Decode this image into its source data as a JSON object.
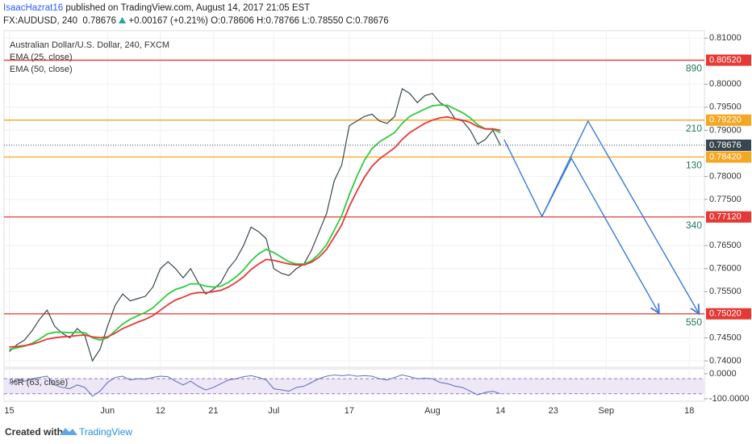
{
  "header": {
    "author": "IsaacHazrat16",
    "published": "published on TradingView.com, August 14, 2017 21:05 EST",
    "symbol": "FX:AUDUSD, 240",
    "price": "0.78676",
    "change": "+0.00167 (+0.21%)",
    "ohlc": "O:0.78606 H:0.78766 L:0.78550 C:0.78676"
  },
  "chart_data": [
    {
      "type": "line",
      "title": "Australian Dollar/U.S. Dollar, 240, FXCM",
      "x": [
        0,
        1,
        2,
        3,
        4,
        5,
        6,
        7,
        8,
        9,
        10,
        11,
        12,
        13,
        14,
        15,
        16,
        17,
        18,
        19,
        20,
        21,
        22,
        23,
        24,
        25,
        26,
        27,
        28,
        29,
        30,
        31,
        32,
        33,
        34,
        35,
        36,
        37,
        38,
        39,
        40,
        41,
        42,
        43,
        44,
        45,
        46,
        47,
        48,
        49,
        50,
        51,
        52,
        53,
        54,
        55,
        56,
        57,
        58,
        59,
        60,
        61,
        62,
        63,
        64,
        65
      ],
      "series": [
        {
          "color": "#37474f",
          "values": [
            0.742,
            0.7435,
            0.7445,
            0.7465,
            0.749,
            0.751,
            0.7475,
            0.746,
            0.745,
            0.747,
            0.7455,
            0.74,
            0.7425,
            0.7475,
            0.752,
            0.7545,
            0.753,
            0.7535,
            0.754,
            0.756,
            0.76,
            0.7615,
            0.76,
            0.758,
            0.76,
            0.757,
            0.7545,
            0.7555,
            0.757,
            0.76,
            0.762,
            0.765,
            0.769,
            0.768,
            0.7665,
            0.76,
            0.759,
            0.7585,
            0.76,
            0.761,
            0.764,
            0.768,
            0.772,
            0.779,
            0.7825,
            0.791,
            0.792,
            0.793,
            0.7935,
            0.792,
            0.7915,
            0.793,
            0.799,
            0.798,
            0.796,
            0.7975,
            0.798,
            0.796,
            0.795,
            0.7925,
            0.792,
            0.79,
            0.787,
            0.788,
            0.79,
            0.78676
          ]
        },
        {
          "name": "EMA (25, close)",
          "color": "#2ecc40",
          "values": [
            0.7425,
            0.7428,
            0.7432,
            0.7438,
            0.7447,
            0.7458,
            0.7462,
            0.7462,
            0.7461,
            0.7462,
            0.7461,
            0.745,
            0.7445,
            0.745,
            0.7465,
            0.748,
            0.749,
            0.7498,
            0.7505,
            0.7515,
            0.753,
            0.7545,
            0.7555,
            0.756,
            0.7567,
            0.7567,
            0.7562,
            0.756,
            0.7562,
            0.757,
            0.7582,
            0.7597,
            0.7617,
            0.7632,
            0.7642,
            0.7635,
            0.7625,
            0.7615,
            0.761,
            0.761,
            0.7617,
            0.7632,
            0.7652,
            0.7683,
            0.7715,
            0.776,
            0.78,
            0.7835,
            0.786,
            0.7875,
            0.7885,
            0.7895,
            0.7915,
            0.793,
            0.7938,
            0.7946,
            0.7953,
            0.7955,
            0.7954,
            0.7946,
            0.7938,
            0.7927,
            0.7912,
            0.7903,
            0.7902,
            0.7895
          ]
        },
        {
          "name": "EMA (50, close)",
          "color": "#e53935",
          "values": [
            0.743,
            0.7431,
            0.7433,
            0.7436,
            0.7441,
            0.7447,
            0.745,
            0.7452,
            0.7453,
            0.7455,
            0.7456,
            0.7452,
            0.745,
            0.7452,
            0.746,
            0.747,
            0.7477,
            0.7484,
            0.749,
            0.7498,
            0.751,
            0.7522,
            0.7532,
            0.7538,
            0.7545,
            0.7548,
            0.7548,
            0.755,
            0.7553,
            0.756,
            0.757,
            0.7582,
            0.7598,
            0.761,
            0.762,
            0.7618,
            0.7614,
            0.761,
            0.7608,
            0.7608,
            0.7614,
            0.7625,
            0.7642,
            0.7668,
            0.7695,
            0.7735,
            0.7768,
            0.7798,
            0.7822,
            0.7838,
            0.785,
            0.7862,
            0.788,
            0.7895,
            0.7905,
            0.7915,
            0.7922,
            0.7927,
            0.7929,
            0.7925,
            0.7922,
            0.7917,
            0.7908,
            0.7903,
            0.7903,
            0.79
          ]
        }
      ],
      "levels": [
        {
          "value": 0.8052,
          "label": "0.80520",
          "pips": "890",
          "color": "#e53935"
        },
        {
          "value": 0.7922,
          "label": "0.79220",
          "pips": "210",
          "color": "#f5a623"
        },
        {
          "value": 0.7842,
          "label": "0.78420",
          "pips": "130",
          "color": "#f5a623"
        },
        {
          "value": 0.7712,
          "label": "0.77120",
          "pips": "340",
          "color": "#e53935"
        },
        {
          "value": 0.7502,
          "label": "0.75020",
          "pips": "550",
          "color": "#e53935"
        }
      ],
      "projections": [
        {
          "color": "#3a7bd5",
          "x": [
            65.5,
            70.5,
            74.4,
            86
          ],
          "y": [
            0.788,
            0.7713,
            0.7839,
            0.7503
          ]
        },
        {
          "color": "#3a7bd5",
          "x": [
            70.5,
            76.6,
            91.3
          ],
          "y": [
            0.7713,
            0.792,
            0.7502
          ]
        }
      ],
      "xlim": [
        -0.7,
        92
      ],
      "xticks": [
        {
          "value": 0,
          "label": "15"
        },
        {
          "value": 13,
          "label": "Jun"
        },
        {
          "value": 20,
          "label": "12"
        },
        {
          "value": 27,
          "label": "21"
        },
        {
          "value": 35,
          "label": "Jul"
        },
        {
          "value": 45,
          "label": "17"
        },
        {
          "value": 56,
          "label": "Aug"
        },
        {
          "value": 65,
          "label": "14"
        },
        {
          "value": 72,
          "label": "23"
        },
        {
          "value": 79,
          "label": "Sep"
        },
        {
          "value": 90,
          "label": "18"
        }
      ],
      "ylim": [
        0.7386,
        0.8116
      ],
      "yticks": [
        {
          "value": 0.74,
          "label": "0.74000"
        },
        {
          "value": 0.745,
          "label": "0.74500"
        },
        {
          "value": 0.755,
          "label": "0.75500"
        },
        {
          "value": 0.76,
          "label": "0.76000"
        },
        {
          "value": 0.765,
          "label": "0.76500"
        },
        {
          "value": 0.775,
          "label": "0.77500"
        },
        {
          "value": 0.78,
          "label": "0.78000"
        },
        {
          "value": 0.79,
          "label": "0.79000"
        },
        {
          "value": 0.795,
          "label": "0.79500"
        },
        {
          "value": 0.8,
          "label": "0.80000"
        },
        {
          "value": 0.81,
          "label": "0.81000"
        }
      ],
      "grid": true
    },
    {
      "type": "line",
      "title": "%R (63, close)",
      "color": "#5b6fb5",
      "values": [
        -40,
        -25,
        -30,
        -20,
        -15,
        -10,
        -45,
        -55,
        -60,
        -45,
        -55,
        -90,
        -70,
        -35,
        -15,
        -10,
        -25,
        -20,
        -22,
        -15,
        -10,
        -12,
        -30,
        -45,
        -30,
        -50,
        -65,
        -55,
        -40,
        -25,
        -20,
        -12,
        -8,
        -15,
        -25,
        -60,
        -65,
        -70,
        -55,
        -50,
        -35,
        -20,
        -10,
        -5,
        -8,
        -5,
        -10,
        -8,
        -10,
        -20,
        -25,
        -15,
        -5,
        -12,
        -20,
        -18,
        -20,
        -35,
        -40,
        -50,
        -55,
        -70,
        -85,
        -75,
        -70,
        -80
      ],
      "bands": [
        -80,
        -20
      ],
      "ylim": [
        -110,
        19
      ],
      "yticks": [
        {
          "value": 0,
          "label": "0.0000"
        },
        {
          "value": -100,
          "label": "-100.0000"
        }
      ]
    }
  ],
  "footer": {
    "created": "Created with",
    "brand": "TradingView"
  }
}
